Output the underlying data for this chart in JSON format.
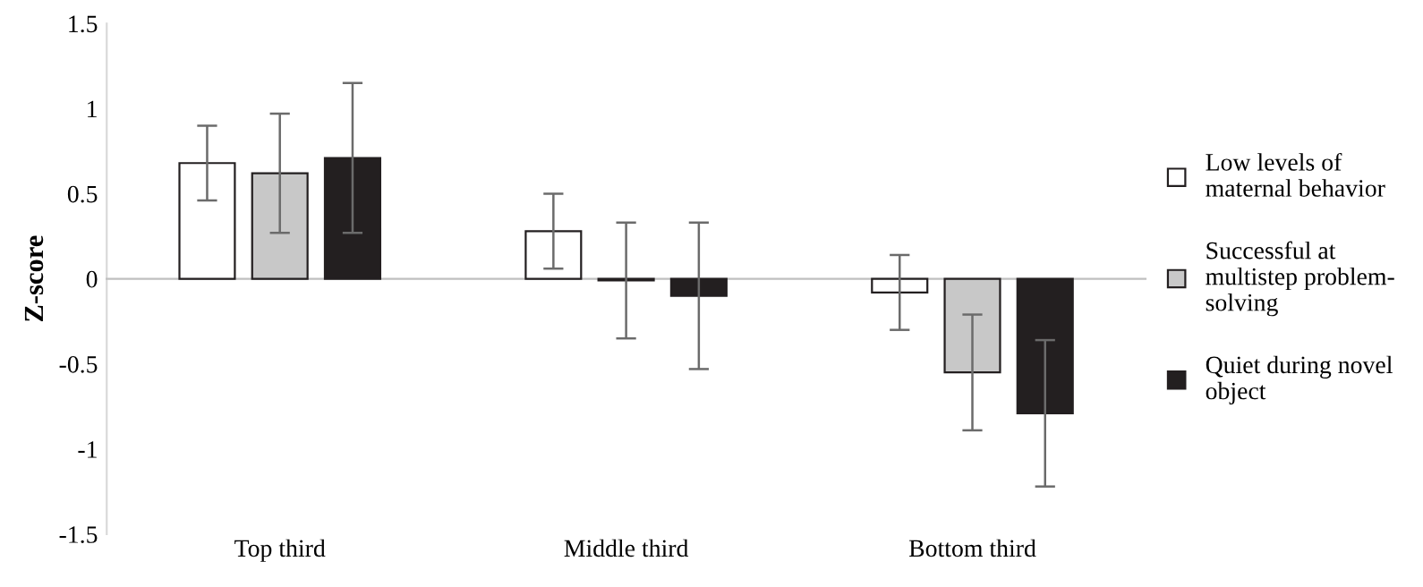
{
  "chart_data": {
    "type": "bar",
    "ylabel": "Z-score",
    "categories": [
      "Top third",
      "Middle third",
      "Bottom third"
    ],
    "series": [
      {
        "name": "Low levels of\nmaternal behavior",
        "color": "#ffffff",
        "values": [
          0.68,
          0.28,
          -0.08
        ],
        "errors": [
          0.22,
          0.22,
          0.22
        ]
      },
      {
        "name": "Successful at\nmultistep problem-\nsolving",
        "color": "#c8c8c8",
        "values": [
          0.62,
          -0.01,
          -0.55
        ],
        "errors": [
          0.35,
          0.34,
          0.34
        ]
      },
      {
        "name": "Quiet during novel\nobject",
        "color": "#231f20",
        "values": [
          0.71,
          -0.1,
          -0.79
        ],
        "errors": [
          0.44,
          0.43,
          0.43
        ]
      }
    ],
    "ylim": [
      -1.5,
      1.5
    ],
    "yticks": [
      -1.5,
      -1,
      -0.5,
      0,
      0.5,
      1,
      1.5
    ],
    "legend": "right"
  }
}
